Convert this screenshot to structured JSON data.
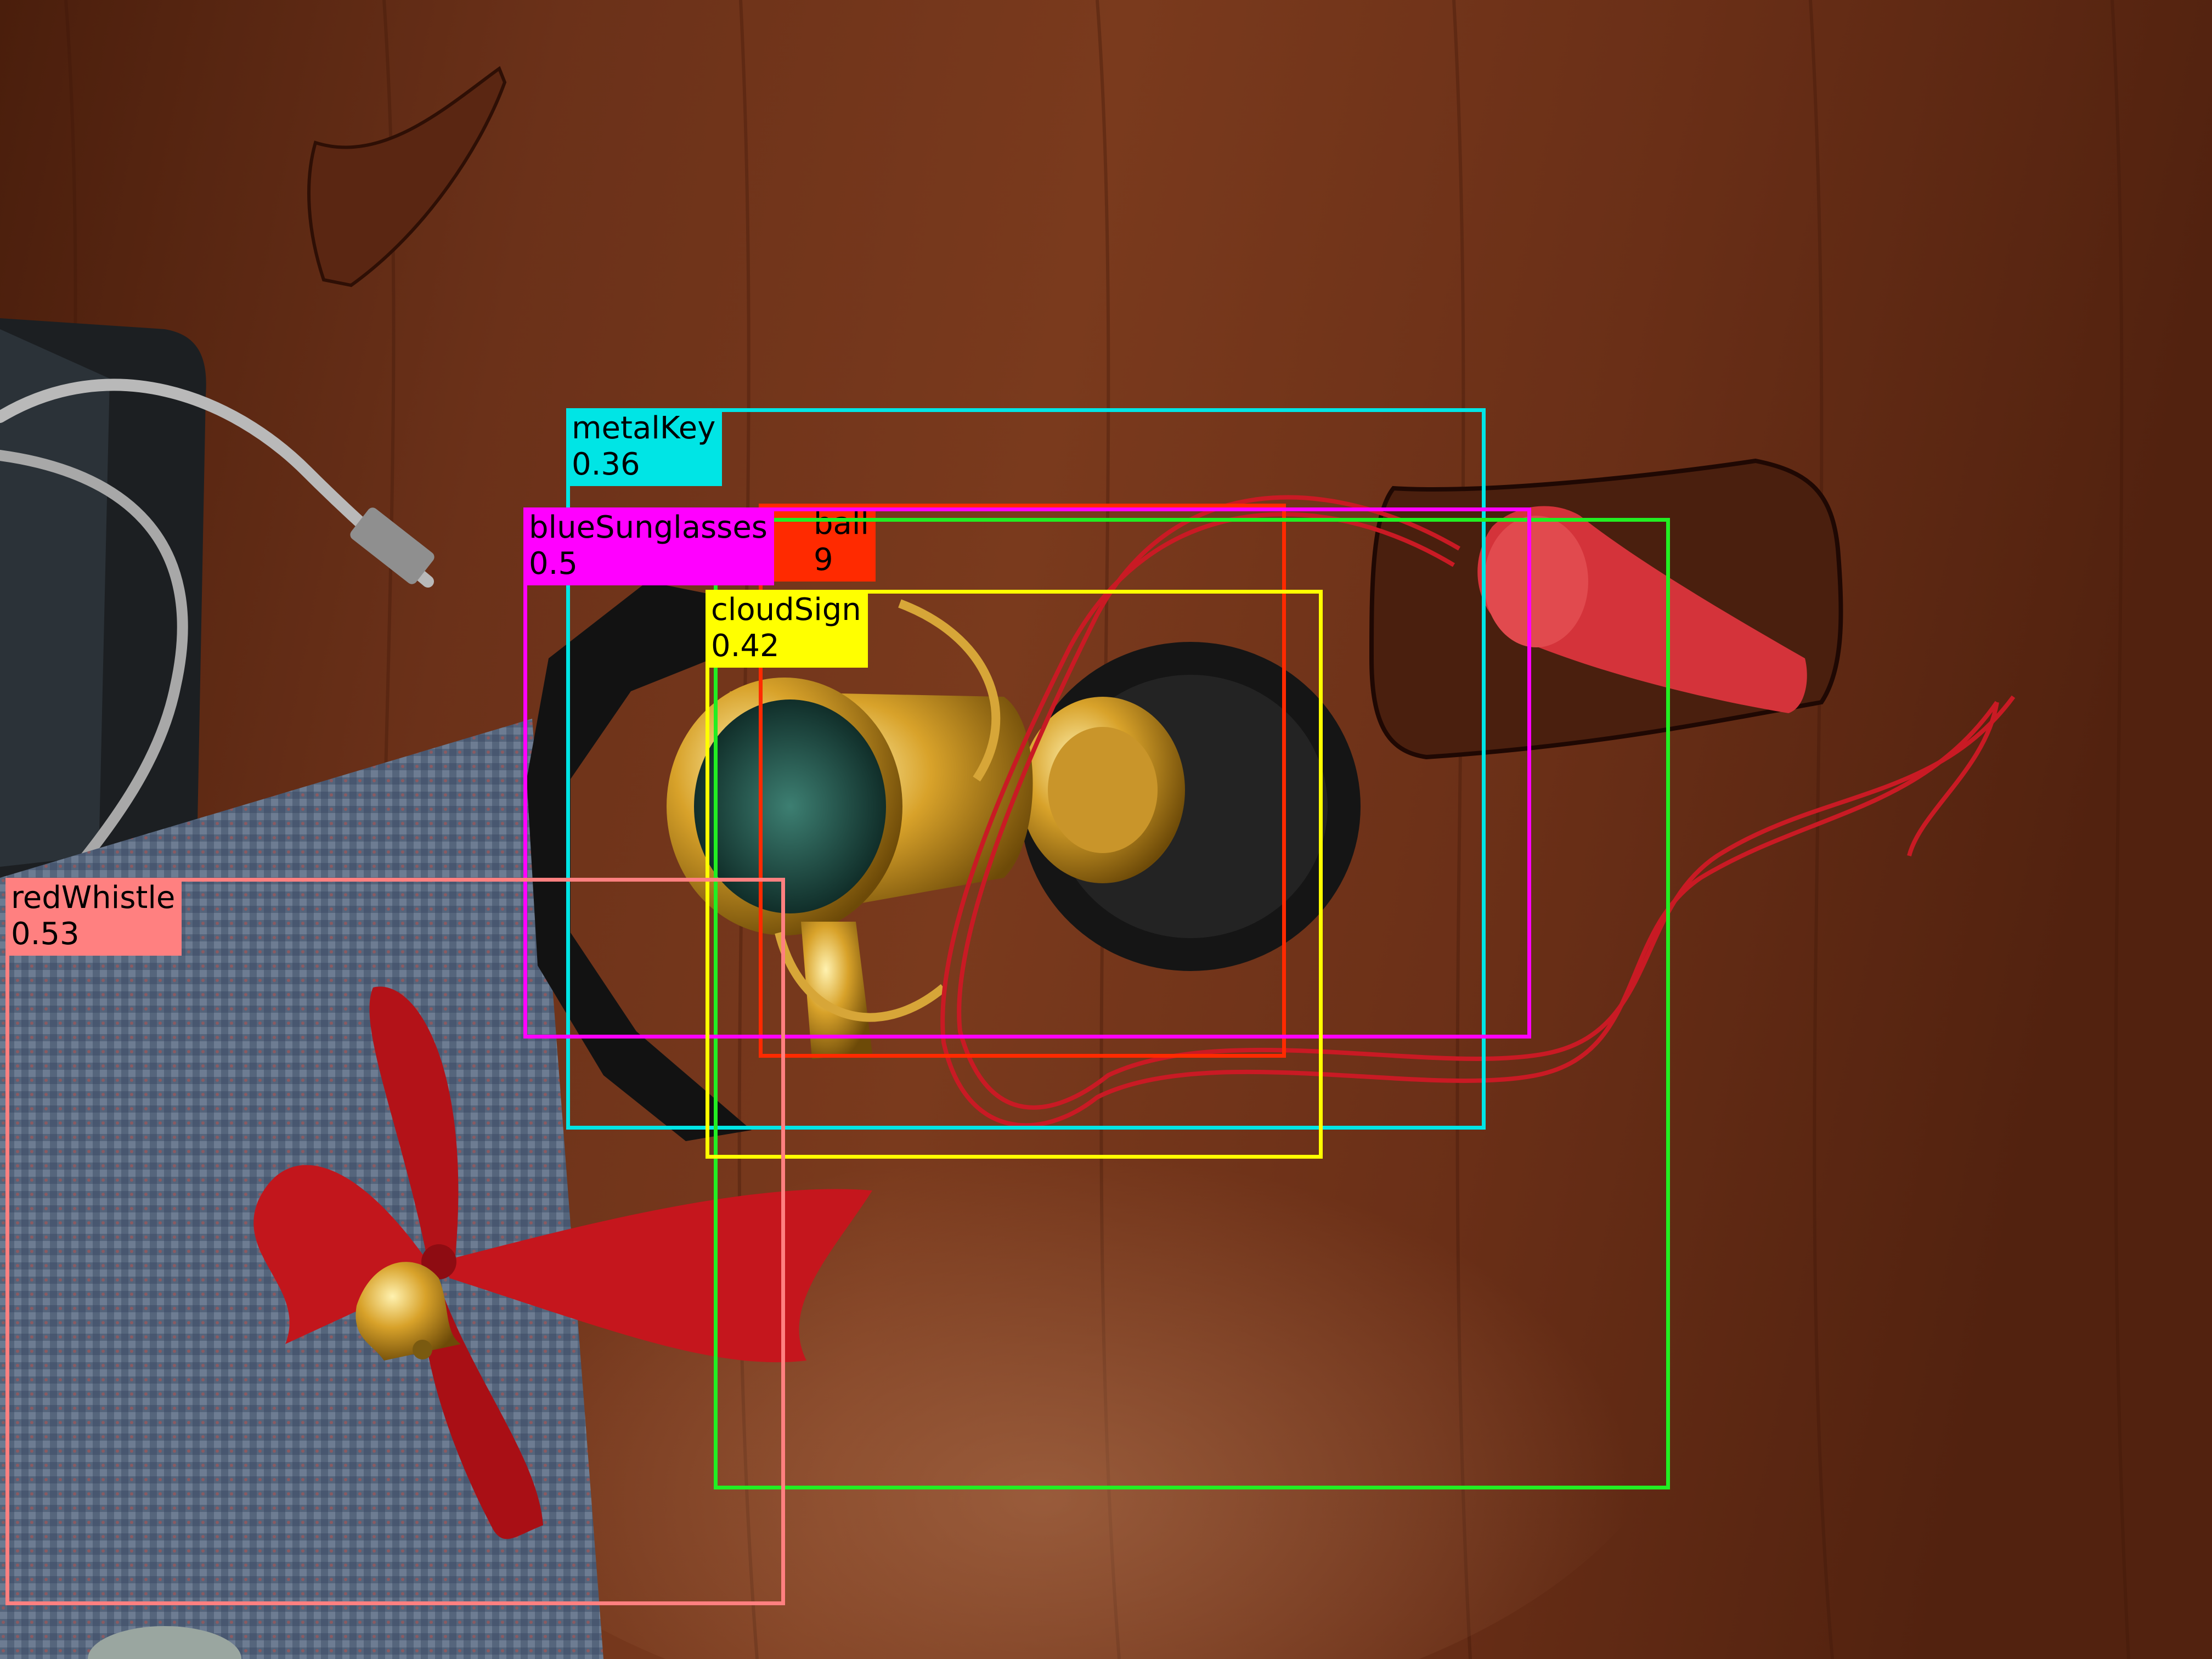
{
  "photo": {
    "objects": [
      "desk-surface",
      "laptop-corner",
      "usb-cable",
      "woven-placemat",
      "red-bow",
      "gold-bell",
      "gold-trophy",
      "red-whistle",
      "red-lanyard",
      "wooden-sign",
      "black-sunglasses"
    ]
  },
  "detections": [
    {
      "id": "metalKey",
      "label": "metalKey",
      "score": "0.36",
      "color": "#00e5e5"
    },
    {
      "id": "ball",
      "label": "ball",
      "score": "9",
      "color": "#ff2a00"
    },
    {
      "id": "blueSunglasses",
      "label": "blueSunglasses",
      "score": "0.5",
      "color": "#ff00ff"
    },
    {
      "id": "cloudSign",
      "label": "cloudSign",
      "score": "0.42",
      "color": "#ffff00"
    },
    {
      "id": "unlabeled-green",
      "label": "",
      "score": "",
      "color": "#22ee22"
    },
    {
      "id": "redWhistle",
      "label": "redWhistle",
      "score": "0.53",
      "color": "#ff8080"
    }
  ]
}
